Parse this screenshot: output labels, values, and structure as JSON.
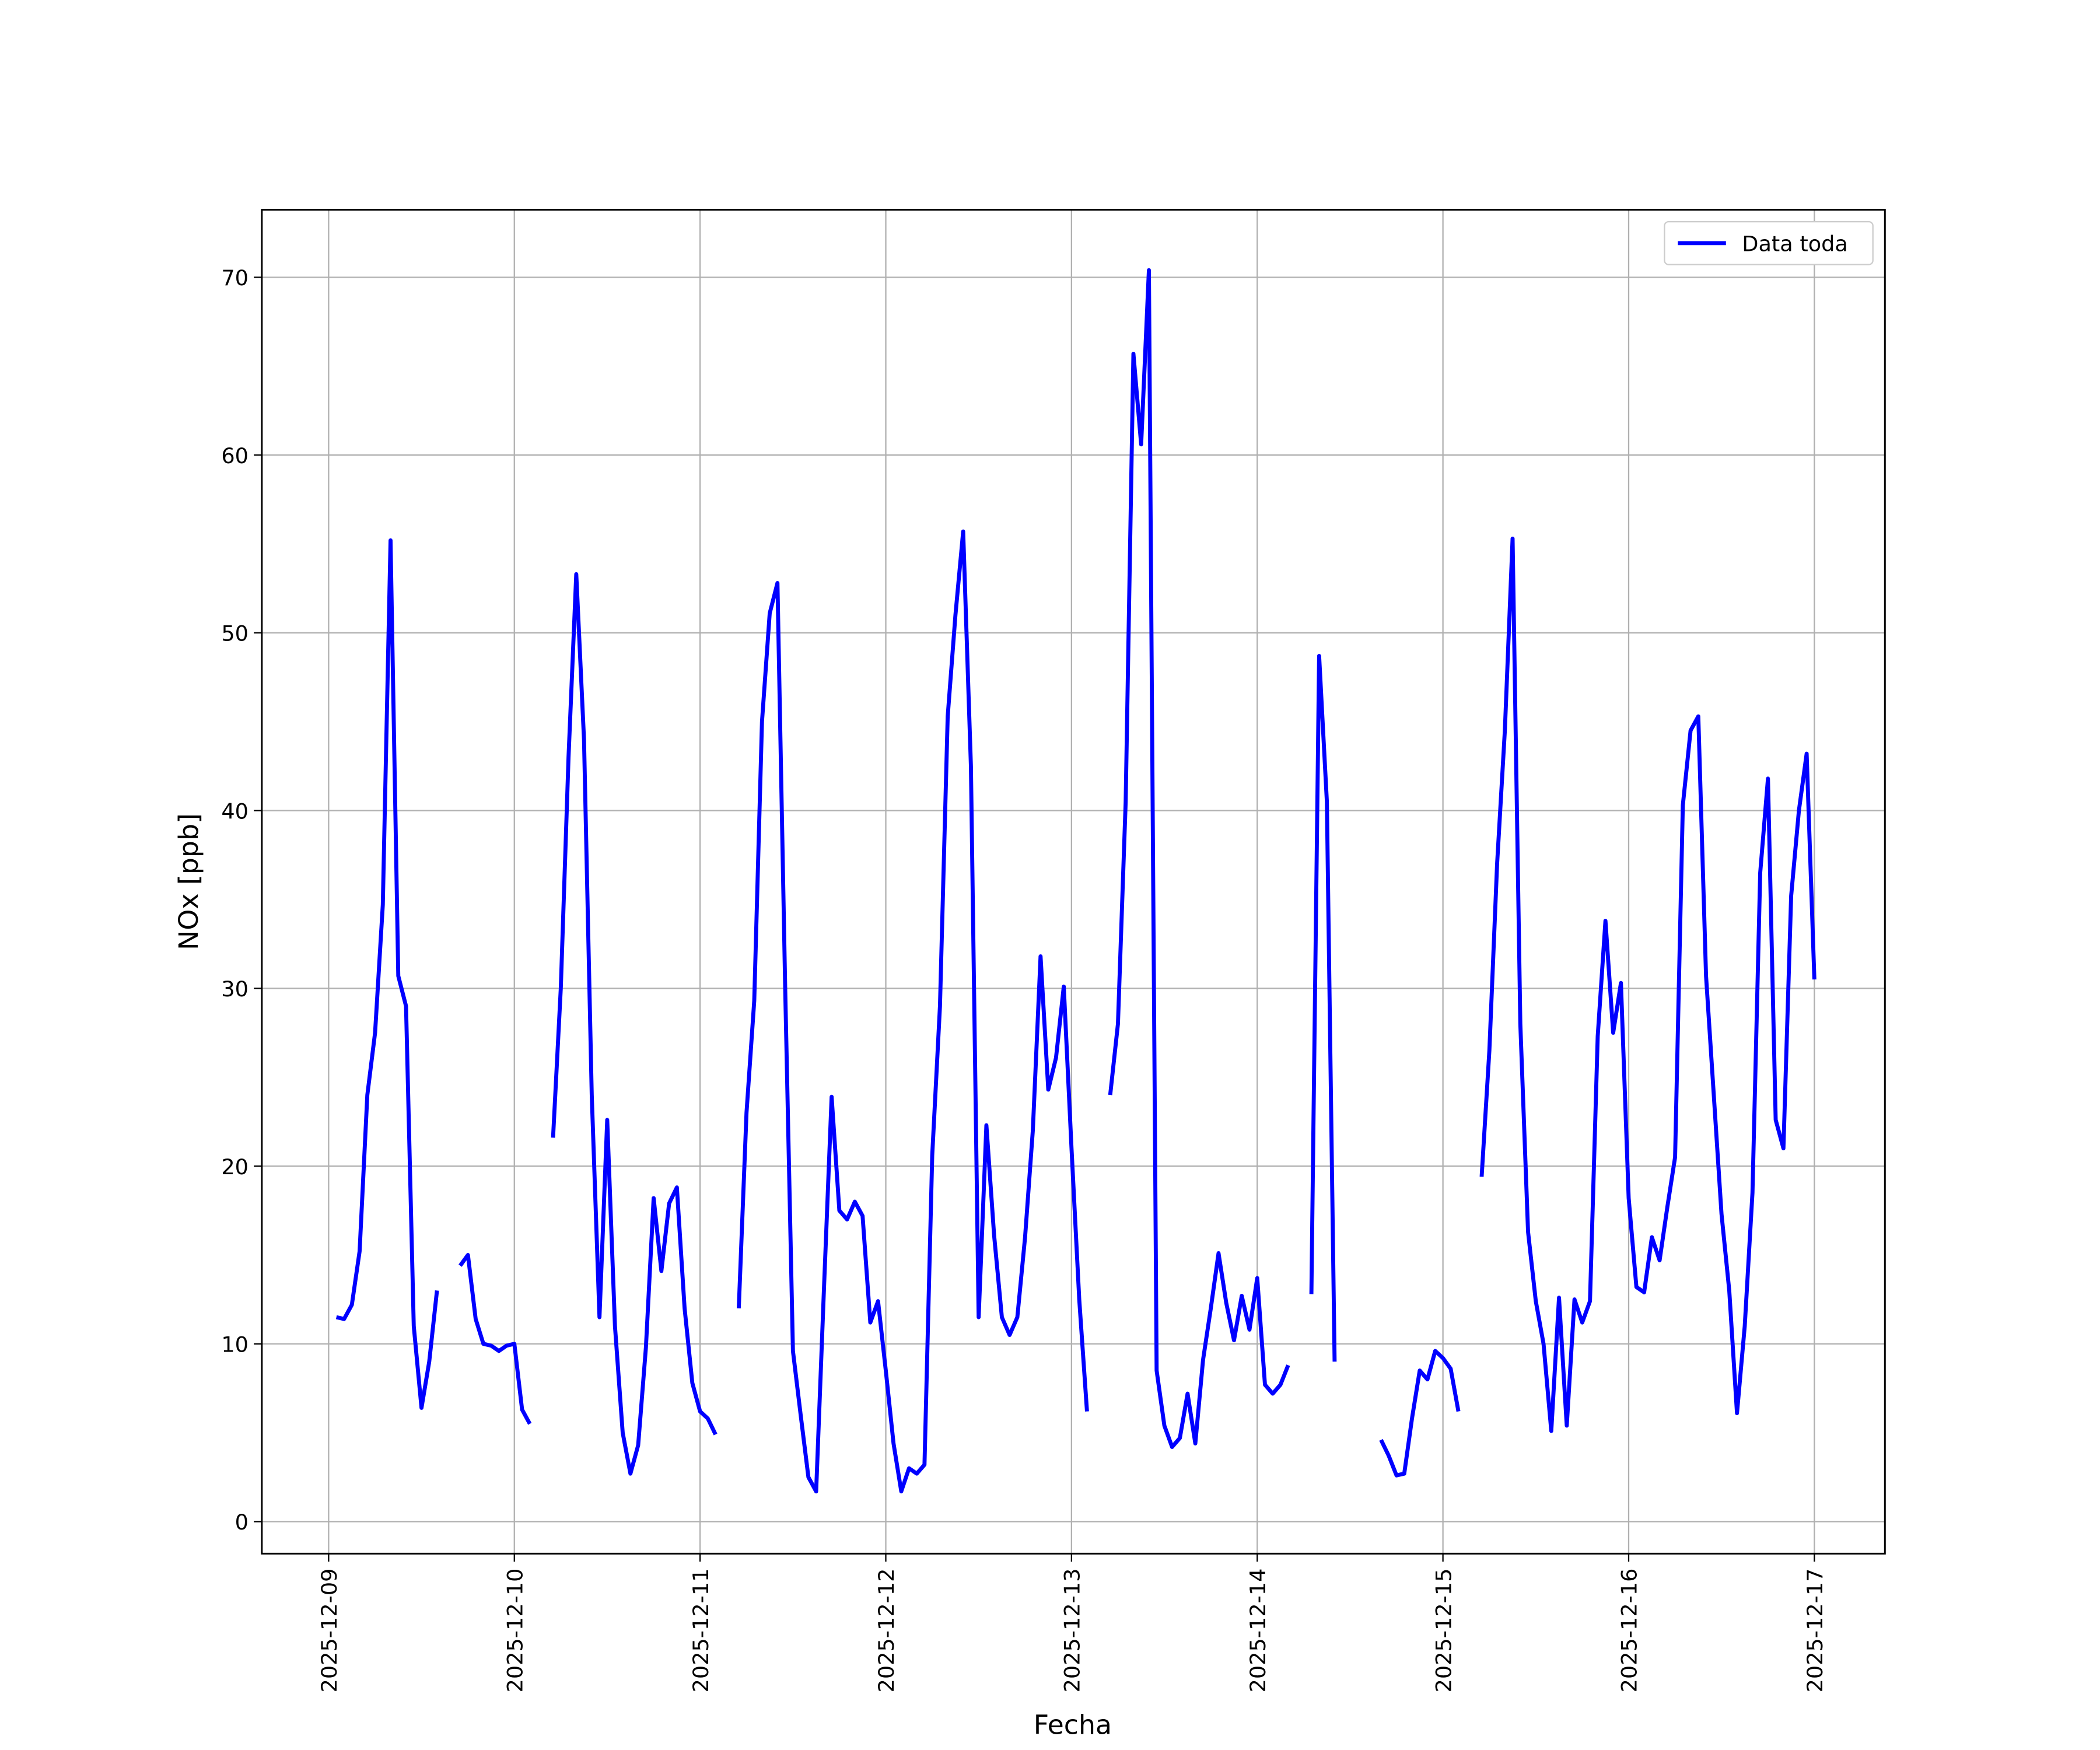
{
  "chart_data": {
    "type": "line",
    "x_label": "Fecha",
    "y_label": "NOx [ppb]",
    "xlim": [
      "2025-12-08 15:22",
      "2025-12-17 09:07"
    ],
    "xticks": [
      "2025-12-09",
      "2025-12-10",
      "2025-12-11",
      "2025-12-12",
      "2025-12-13",
      "2025-12-14",
      "2025-12-15",
      "2025-12-16",
      "2025-12-17"
    ],
    "ylim": [
      -1.8,
      73.8
    ],
    "yticks": [
      0,
      10,
      20,
      30,
      40,
      50,
      60,
      70
    ],
    "grid": true,
    "legend": "upper right",
    "x": [
      "2025-12-09 01:00",
      "2025-12-09 02:00",
      "2025-12-09 03:00",
      "2025-12-09 04:00",
      "2025-12-09 05:00",
      "2025-12-09 06:00",
      "2025-12-09 07:00",
      "2025-12-09 08:00",
      "2025-12-09 09:00",
      "2025-12-09 10:00",
      "2025-12-09 11:00",
      "2025-12-09 12:00",
      "2025-12-09 13:00",
      "2025-12-09 14:00",
      "2025-12-09 15:00",
      "2025-12-09 16:00",
      "2025-12-09 17:00",
      "2025-12-09 18:00",
      "2025-12-09 19:00",
      "2025-12-09 20:00",
      "2025-12-09 21:00",
      "2025-12-09 22:00",
      "2025-12-09 23:00",
      "2025-12-10 00:00",
      "2025-12-10 01:00",
      "2025-12-10 02:00",
      "2025-12-10 03:00",
      "2025-12-10 04:00",
      "2025-12-10 05:00",
      "2025-12-10 06:00",
      "2025-12-10 07:00",
      "2025-12-10 08:00",
      "2025-12-10 09:00",
      "2025-12-10 10:00",
      "2025-12-10 11:00",
      "2025-12-10 12:00",
      "2025-12-10 13:00",
      "2025-12-10 14:00",
      "2025-12-10 15:00",
      "2025-12-10 16:00",
      "2025-12-10 17:00",
      "2025-12-10 18:00",
      "2025-12-10 19:00",
      "2025-12-10 20:00",
      "2025-12-10 21:00",
      "2025-12-10 22:00",
      "2025-12-10 23:00",
      "2025-12-11 00:00",
      "2025-12-11 01:00",
      "2025-12-11 02:00",
      "2025-12-11 03:00",
      "2025-12-11 04:00",
      "2025-12-11 05:00",
      "2025-12-11 06:00",
      "2025-12-11 07:00",
      "2025-12-11 08:00",
      "2025-12-11 09:00",
      "2025-12-11 10:00",
      "2025-12-11 11:00",
      "2025-12-11 12:00",
      "2025-12-11 13:00",
      "2025-12-11 14:00",
      "2025-12-11 15:00",
      "2025-12-11 16:00",
      "2025-12-11 17:00",
      "2025-12-11 18:00",
      "2025-12-11 19:00",
      "2025-12-11 20:00",
      "2025-12-11 21:00",
      "2025-12-11 22:00",
      "2025-12-11 23:00",
      "2025-12-12 00:00",
      "2025-12-12 01:00",
      "2025-12-12 02:00",
      "2025-12-12 03:00",
      "2025-12-12 04:00",
      "2025-12-12 05:00",
      "2025-12-12 06:00",
      "2025-12-12 07:00",
      "2025-12-12 08:00",
      "2025-12-12 09:00",
      "2025-12-12 10:00",
      "2025-12-12 11:00",
      "2025-12-12 12:00",
      "2025-12-12 13:00",
      "2025-12-12 14:00",
      "2025-12-12 15:00",
      "2025-12-12 16:00",
      "2025-12-12 17:00",
      "2025-12-12 18:00",
      "2025-12-12 19:00",
      "2025-12-12 20:00",
      "2025-12-12 21:00",
      "2025-12-12 22:00",
      "2025-12-12 23:00",
      "2025-12-13 00:00",
      "2025-12-13 01:00",
      "2025-12-13 02:00",
      "2025-12-13 03:00",
      "2025-12-13 04:00",
      "2025-12-13 05:00",
      "2025-12-13 06:00",
      "2025-12-13 07:00",
      "2025-12-13 08:00",
      "2025-12-13 09:00",
      "2025-12-13 10:00",
      "2025-12-13 11:00",
      "2025-12-13 12:00",
      "2025-12-13 13:00",
      "2025-12-13 14:00",
      "2025-12-13 15:00",
      "2025-12-13 16:00",
      "2025-12-13 17:00",
      "2025-12-13 18:00",
      "2025-12-13 19:00",
      "2025-12-13 20:00",
      "2025-12-13 21:00",
      "2025-12-13 22:00",
      "2025-12-13 23:00",
      "2025-12-14 00:00",
      "2025-12-14 01:00",
      "2025-12-14 02:00",
      "2025-12-14 03:00",
      "2025-12-14 04:00",
      "2025-12-14 05:00",
      "2025-12-14 06:00",
      "2025-12-14 07:00",
      "2025-12-14 08:00",
      "2025-12-14 09:00",
      "2025-12-14 10:00",
      "2025-12-14 11:00",
      "2025-12-14 12:00",
      "2025-12-14 13:00",
      "2025-12-14 14:00",
      "2025-12-14 15:00",
      "2025-12-14 16:00",
      "2025-12-14 17:00",
      "2025-12-14 18:00",
      "2025-12-14 19:00",
      "2025-12-14 20:00",
      "2025-12-14 21:00",
      "2025-12-14 22:00",
      "2025-12-14 23:00",
      "2025-12-15 00:00",
      "2025-12-15 01:00",
      "2025-12-15 02:00",
      "2025-12-15 03:00",
      "2025-12-15 04:00",
      "2025-12-15 05:00",
      "2025-12-15 06:00",
      "2025-12-15 07:00",
      "2025-12-15 08:00",
      "2025-12-15 09:00",
      "2025-12-15 10:00",
      "2025-12-15 11:00",
      "2025-12-15 12:00",
      "2025-12-15 13:00",
      "2025-12-15 14:00",
      "2025-12-15 15:00",
      "2025-12-15 16:00",
      "2025-12-15 17:00",
      "2025-12-15 18:00",
      "2025-12-15 19:00",
      "2025-12-15 20:00",
      "2025-12-15 21:00",
      "2025-12-15 22:00",
      "2025-12-15 23:00",
      "2025-12-16 00:00",
      "2025-12-16 01:00",
      "2025-12-16 02:00",
      "2025-12-16 03:00",
      "2025-12-16 04:00",
      "2025-12-16 05:00",
      "2025-12-16 06:00",
      "2025-12-16 07:00",
      "2025-12-16 08:00",
      "2025-12-16 09:00",
      "2025-12-16 10:00",
      "2025-12-16 11:00",
      "2025-12-16 12:00",
      "2025-12-16 13:00",
      "2025-12-16 14:00",
      "2025-12-16 15:00",
      "2025-12-16 16:00",
      "2025-12-16 17:00",
      "2025-12-16 18:00",
      "2025-12-16 19:00",
      "2025-12-16 20:00",
      "2025-12-16 21:00",
      "2025-12-16 22:00",
      "2025-12-16 23:00",
      "2025-12-17 00:00"
    ],
    "series": [
      {
        "name": "Data toda",
        "color": "#0000ff",
        "values": [
          11.5,
          11.4,
          12.2,
          15.2,
          24,
          27.5,
          34.7,
          55.2,
          30.7,
          29,
          11,
          6.4,
          9,
          13,
          null,
          null,
          14.4,
          15,
          11.4,
          10,
          9.9,
          9.6,
          9.9,
          10,
          6.3,
          5.5,
          null,
          null,
          21.6,
          30,
          43,
          53.3,
          44,
          24,
          11.5,
          22.6,
          11,
          5,
          2.7,
          4.3,
          9.8,
          18.2,
          14.1,
          17.9,
          18.8,
          12,
          7.8,
          6.2,
          5.8,
          4.9,
          null,
          null,
          12,
          23,
          29.3,
          45,
          51.1,
          52.8,
          30,
          9.6,
          6,
          2.5,
          1.7,
          13,
          23.9,
          17.5,
          17,
          18,
          17.2,
          11.2,
          12.4,
          8.5,
          4.4,
          1.7,
          3,
          2.7,
          3.2,
          20.6,
          29,
          45.3,
          51,
          55.7,
          42.5,
          11.5,
          22.3,
          16.1,
          11.5,
          10.5,
          11.5,
          16,
          22,
          31.8,
          24.3,
          26.1,
          30.1,
          21,
          12.5,
          6.2,
          null,
          null,
          24,
          28,
          40.5,
          65.7,
          60.6,
          70.4,
          8.5,
          5.4,
          4.2,
          4.7,
          7.2,
          4.4,
          9.1,
          12,
          15.1,
          12.3,
          10.2,
          12.7,
          10.8,
          13.7,
          7.7,
          7.2,
          7.7,
          8.8,
          null,
          null,
          12.8,
          48.7,
          40.5,
          9,
          null,
          null,
          null,
          null,
          null,
          4.6,
          3.7,
          2.6,
          2.7,
          5.8,
          8.5,
          8,
          9.6,
          9.2,
          8.6,
          6.2,
          null,
          null,
          19.4,
          26.5,
          37,
          44.5,
          55.3,
          28,
          16.3,
          12.4,
          10,
          5.1,
          12.6,
          5.4,
          12.5,
          11.2,
          12.4,
          27.3,
          33.8,
          27.5,
          30.3,
          18.2,
          13.2,
          12.9,
          16,
          14.7,
          17.7,
          20.5,
          40.3,
          44.5,
          45.3,
          30.7,
          24,
          17.3,
          13,
          6.1,
          11,
          18.5,
          36.5,
          41.8,
          22.6,
          21,
          35.2,
          40,
          43.2,
          30.5
        ]
      }
    ]
  }
}
